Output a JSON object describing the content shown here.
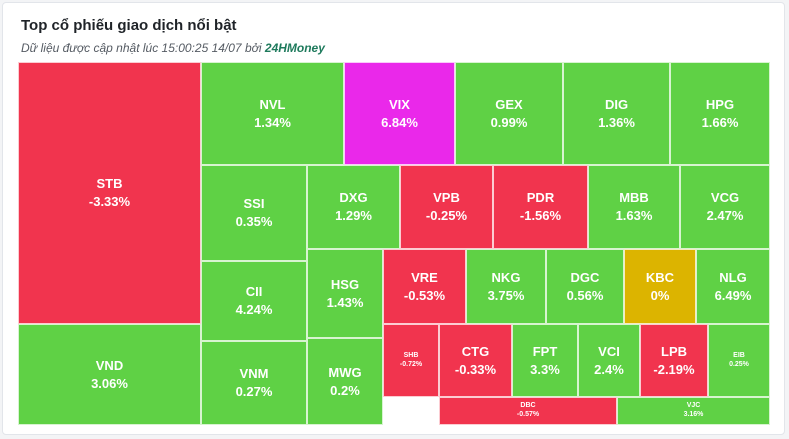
{
  "header": {
    "title": "Top cổ phiếu giao dịch nổi bật",
    "subtitle_prefix": "Dữ liệu được cập nhật lúc 15:00:25 14/07 bởi",
    "brand": "24HMoney"
  },
  "colors": {
    "up": "#5fd145",
    "down": "#f1344e",
    "ceiling": "#ea28ea",
    "unchanged": "#dcb400"
  },
  "tiles": [
    {
      "symbol": "STB",
      "change": "-3.33%",
      "trend": "down"
    },
    {
      "symbol": "VND",
      "change": "3.06%",
      "trend": "up"
    },
    {
      "symbol": "NVL",
      "change": "1.34%",
      "trend": "up"
    },
    {
      "symbol": "VIX",
      "change": "6.84%",
      "trend": "ceiling"
    },
    {
      "symbol": "GEX",
      "change": "0.99%",
      "trend": "up"
    },
    {
      "symbol": "DIG",
      "change": "1.36%",
      "trend": "up"
    },
    {
      "symbol": "HPG",
      "change": "1.66%",
      "trend": "up"
    },
    {
      "symbol": "SSI",
      "change": "0.35%",
      "trend": "up"
    },
    {
      "symbol": "CII",
      "change": "4.24%",
      "trend": "up"
    },
    {
      "symbol": "VNM",
      "change": "0.27%",
      "trend": "up"
    },
    {
      "symbol": "DXG",
      "change": "1.29%",
      "trend": "up"
    },
    {
      "symbol": "VPB",
      "change": "-0.25%",
      "trend": "down"
    },
    {
      "symbol": "PDR",
      "change": "-1.56%",
      "trend": "down"
    },
    {
      "symbol": "MBB",
      "change": "1.63%",
      "trend": "up"
    },
    {
      "symbol": "VCG",
      "change": "2.47%",
      "trend": "up"
    },
    {
      "symbol": "HSG",
      "change": "1.43%",
      "trend": "up"
    },
    {
      "symbol": "MWG",
      "change": "0.2%",
      "trend": "up"
    },
    {
      "symbol": "VRE",
      "change": "-0.53%",
      "trend": "down"
    },
    {
      "symbol": "NKG",
      "change": "3.75%",
      "trend": "up"
    },
    {
      "symbol": "DGC",
      "change": "0.56%",
      "trend": "up"
    },
    {
      "symbol": "KBC",
      "change": "0%",
      "trend": "unchanged"
    },
    {
      "symbol": "NLG",
      "change": "6.49%",
      "trend": "up"
    },
    {
      "symbol": "SHB",
      "change": "-0.72%",
      "trend": "down"
    },
    {
      "symbol": "CTG",
      "change": "-0.33%",
      "trend": "down"
    },
    {
      "symbol": "FPT",
      "change": "3.3%",
      "trend": "up"
    },
    {
      "symbol": "VCI",
      "change": "2.4%",
      "trend": "up"
    },
    {
      "symbol": "LPB",
      "change": "-2.19%",
      "trend": "down"
    },
    {
      "symbol": "EIB",
      "change": "0.25%",
      "trend": "up"
    },
    {
      "symbol": "DBC",
      "change": "-0.57%",
      "trend": "down"
    },
    {
      "symbol": "VJC",
      "change": "3.16%",
      "trend": "up"
    }
  ]
}
